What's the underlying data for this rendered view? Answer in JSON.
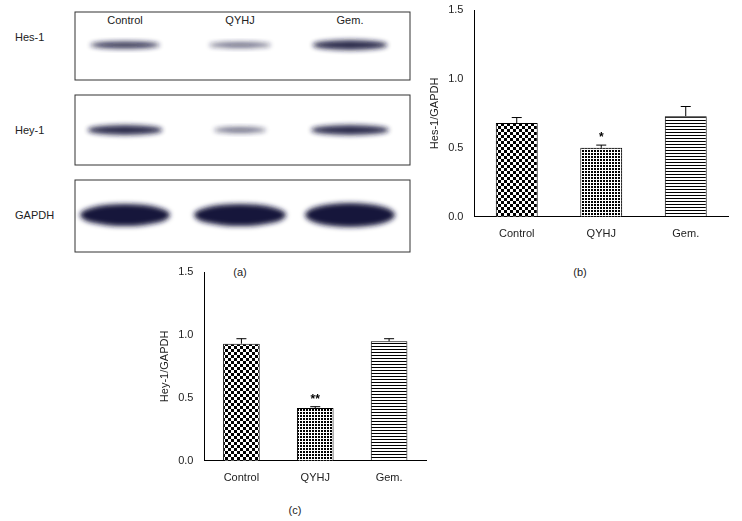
{
  "blot": {
    "caption": "(a)",
    "lanes": [
      "Control",
      "QYHJ",
      "Gem."
    ],
    "rows": [
      "Hes-1",
      "Hey-1",
      "GAPDH"
    ]
  },
  "chart_data": [
    {
      "type": "bar",
      "caption": "(b)",
      "y_label": "Hes-1/GAPDH",
      "categories": [
        "Control",
        "QYHJ",
        "Gem."
      ],
      "values": [
        0.68,
        0.5,
        0.73
      ],
      "errors": [
        0.04,
        0.02,
        0.07
      ],
      "color": "#000000",
      "annotations": [
        {
          "category": "QYHJ",
          "text": "*"
        }
      ],
      "ylim": [
        0,
        1.5
      ],
      "yticks": [
        {
          "value": 0,
          "label": "0.0"
        },
        {
          "value": 0.5,
          "label": "0.5"
        },
        {
          "value": 1,
          "label": "1.0"
        },
        {
          "value": 1.5,
          "label": "1.5"
        }
      ],
      "grid": false
    },
    {
      "type": "bar",
      "caption": "(c)",
      "y_label": "Hey-1/GAPDH",
      "categories": [
        "Control",
        "QYHJ",
        "Gem."
      ],
      "values": [
        0.93,
        0.42,
        0.95
      ],
      "errors": [
        0.04,
        0.01,
        0.02
      ],
      "color": "#000000",
      "annotations": [
        {
          "category": "QYHJ",
          "text": "**"
        }
      ],
      "ylim": [
        0,
        1.5
      ],
      "yticks": [
        {
          "value": 0,
          "label": "0.0"
        },
        {
          "value": 0.5,
          "label": "0.5"
        },
        {
          "value": 1,
          "label": "1.0"
        },
        {
          "value": 1.5,
          "label": "1.5"
        }
      ],
      "grid": false
    }
  ]
}
